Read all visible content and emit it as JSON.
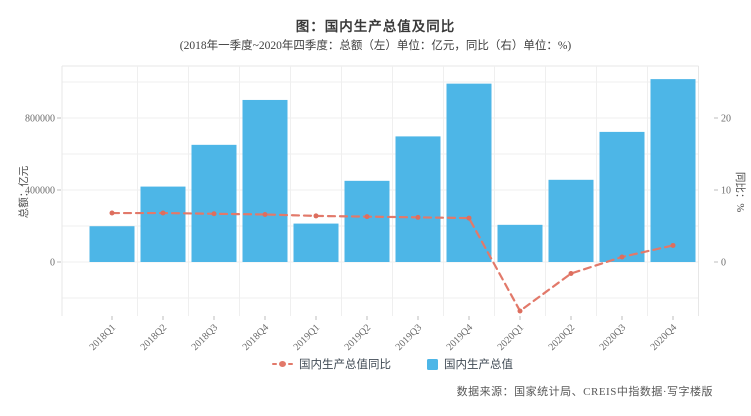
{
  "title": "图：国内生产总值及同比",
  "subtitle": "(2018年一季度~2020年四季度：总额（左）单位：亿元，同比（右）单位：%)",
  "source": "数据来源：国家统计局、CREIS中指数据·写字楼版",
  "colors": {
    "bar": "#4db6e7",
    "line": "#e2796a",
    "marker": "#dd6e5e",
    "grid": "#efefef",
    "panel_border": "#e7e7e7",
    "tick_text": "#6b6b6b",
    "axis_title_text": "#4a4a4a"
  },
  "legend": [
    {
      "label": "国内生产总值同比",
      "color": "#e2796a",
      "type": "line"
    },
    {
      "label": "国内生产总值",
      "color": "#4db6e7",
      "type": "bar"
    }
  ],
  "chart_data": {
    "type": "bar",
    "title": "图：国内生产总值及同比",
    "categories": [
      "2018Q1",
      "2018Q2",
      "2018Q3",
      "2018Q4",
      "2019Q1",
      "2019Q2",
      "2019Q3",
      "2019Q4",
      "2020Q1",
      "2020Q2",
      "2020Q3",
      "2020Q4"
    ],
    "series": [
      {
        "name": "国内生产总值",
        "type": "bar",
        "y_axis": "left",
        "unit": "亿元",
        "values": [
          198783,
          418961,
          650899,
          900309,
          213433,
          450933,
          697798,
          990865,
          206504,
          456614,
          722786,
          1015986
        ]
      },
      {
        "name": "国内生产总值同比",
        "type": "line",
        "y_axis": "right",
        "unit": "%",
        "values": [
          6.8,
          6.8,
          6.7,
          6.6,
          6.4,
          6.3,
          6.2,
          6.1,
          -6.8,
          -1.6,
          0.7,
          2.3
        ]
      }
    ],
    "left_axis": {
      "label": "总额：亿元",
      "ticks": [
        0,
        400000,
        800000
      ],
      "range": [
        -300000,
        1090000
      ]
    },
    "right_axis": {
      "label": "同比：%",
      "ticks": [
        0,
        10,
        20
      ],
      "range": [
        -7.5,
        27.2
      ],
      "grid_values": [
        -5,
        0,
        5,
        10,
        15,
        20,
        25
      ]
    },
    "grid": true,
    "legend_position": "bottom"
  }
}
